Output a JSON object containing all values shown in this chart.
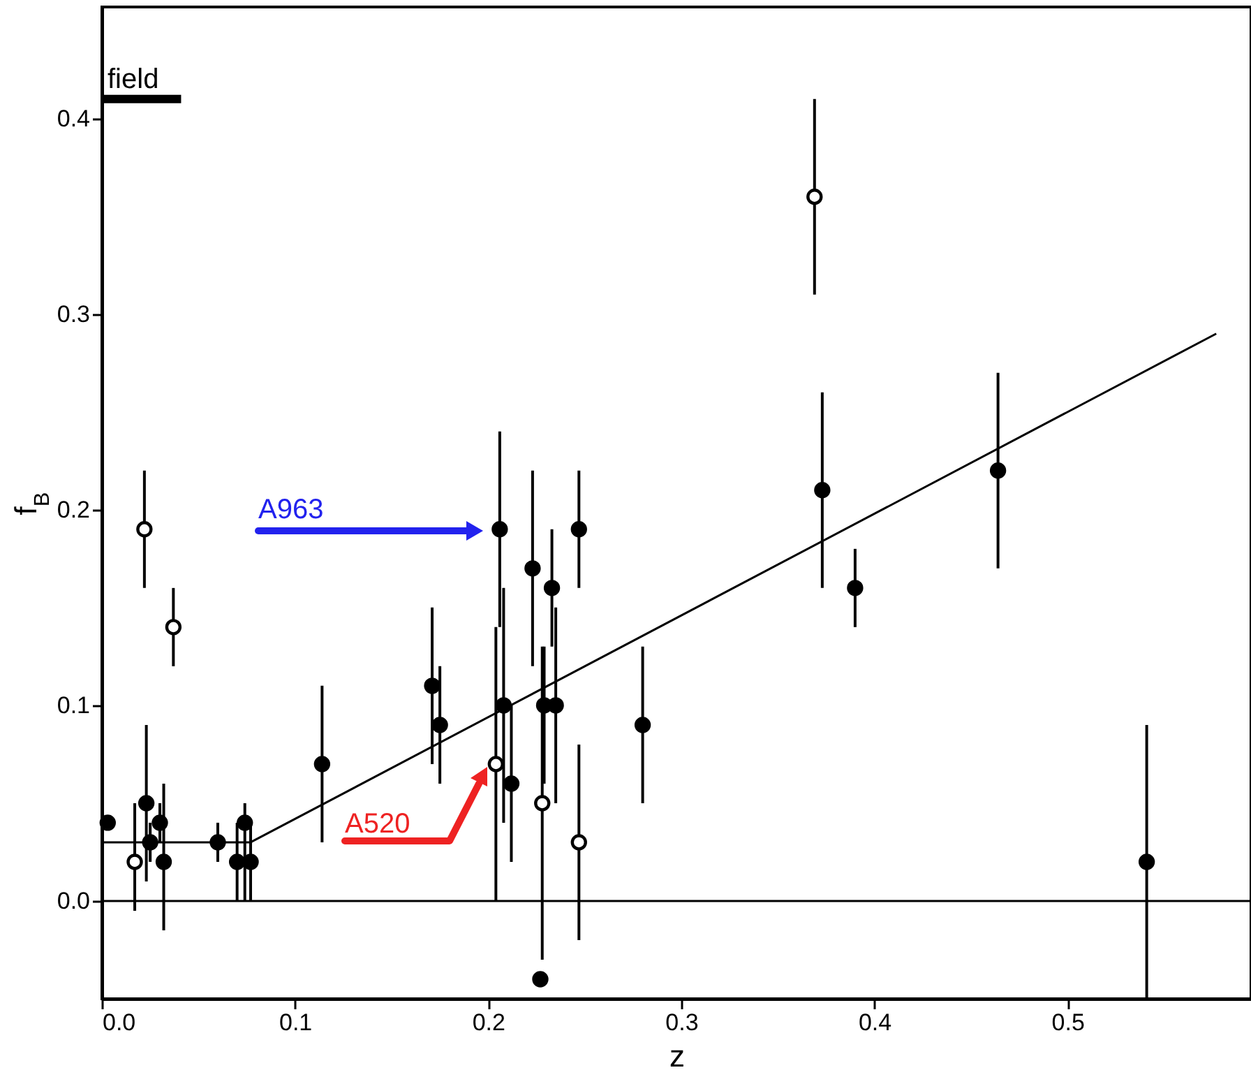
{
  "chart_data": {
    "type": "scatter",
    "xlabel": "z",
    "ylabel": "f$_{B}$",
    "xlim": [
      0,
      0.595
    ],
    "ylim": [
      -0.05,
      0.457
    ],
    "xticks": [
      {
        "value": 0,
        "label": "0.0"
      },
      {
        "value": 0.1,
        "label": "0.1"
      },
      {
        "value": 0.2,
        "label": "0.2"
      },
      {
        "value": 0.3,
        "label": "0.3"
      },
      {
        "value": 0.4,
        "label": "0.4"
      },
      {
        "value": 0.5,
        "label": "0.5"
      }
    ],
    "yticks": [
      {
        "value": 0,
        "label": "0.0"
      },
      {
        "value": 0.1,
        "label": "0.1"
      },
      {
        "value": 0.2,
        "label": "0.2"
      },
      {
        "value": 0.3,
        "label": "0.3"
      },
      {
        "value": 0.4,
        "label": "0.4"
      }
    ],
    "grid": false,
    "series": [
      {
        "marker": "circle",
        "color": "#000000",
        "x": [
          0.003,
          0.023,
          0.025,
          0.03,
          0.032,
          0.06,
          0.07,
          0.074,
          0.077,
          0.114,
          0.171,
          0.175,
          0.206,
          0.208,
          0.212,
          0.223,
          0.227,
          0.229,
          0.233,
          0.235,
          0.247,
          0.28,
          0.373,
          0.39,
          0.464,
          0.541
        ],
        "values": [
          0.04,
          0.05,
          0.03,
          0.04,
          0.02,
          0.03,
          0.02,
          0.04,
          0.02,
          0.07,
          0.11,
          0.09,
          0.19,
          0.1,
          0.06,
          0.17,
          -0.04,
          0.1,
          0.16,
          0.1,
          0.19,
          0.09,
          0.21,
          0.16,
          0.22,
          0.02
        ],
        "errors": [
          null,
          [
            0.01,
            0.09
          ],
          [
            0.02,
            0.04
          ],
          [
            0.03,
            0.05
          ],
          [
            -0.015,
            0.06
          ],
          [
            0.02,
            0.04
          ],
          [
            0,
            0.04
          ],
          [
            0,
            0.05
          ],
          [
            0,
            0.04
          ],
          [
            0.03,
            0.11
          ],
          [
            0.07,
            0.15
          ],
          [
            0.06,
            0.12
          ],
          [
            0.14,
            0.24
          ],
          [
            0.04,
            0.16
          ],
          [
            0.02,
            0.1
          ],
          [
            0.12,
            0.22
          ],
          null,
          [
            0.06,
            0.13
          ],
          [
            0.13,
            0.19
          ],
          [
            0.05,
            0.15
          ],
          [
            0.16,
            0.22
          ],
          [
            0.05,
            0.13
          ],
          [
            0.16,
            0.26
          ],
          [
            0.14,
            0.18
          ],
          [
            0.17,
            0.27
          ],
          [
            -0.05,
            0.09
          ]
        ]
      },
      {
        "marker": "circle",
        "color": "#ffffff",
        "x": [
          0.017,
          0.022,
          0.037,
          0.204,
          0.228,
          0.247,
          0.369
        ],
        "values": [
          0.02,
          0.19,
          0.14,
          0.07,
          0.05,
          0.03,
          0.36
        ],
        "errors": [
          [
            -0.005,
            0.05
          ],
          [
            0.16,
            0.22
          ],
          [
            0.12,
            0.16
          ],
          [
            0,
            0.14
          ],
          [
            -0.03,
            0.13
          ],
          [
            -0.02,
            0.08
          ],
          [
            0.31,
            0.41
          ]
        ]
      },
      {
        "type": "line",
        "color": "#000000",
        "x": [
          0,
          0.077,
          0.577
        ],
        "values": [
          0.03,
          0.03,
          0.29
        ]
      },
      {
        "type": "line",
        "name": "field",
        "color": "#000000",
        "x": [
          0,
          0.041
        ],
        "values": [
          0.41,
          0.41
        ]
      }
    ],
    "ref_lines": [
      {
        "axis": "y",
        "value": 0,
        "color": "#000000"
      }
    ],
    "annotations": [
      "A963",
      "A520"
    ]
  }
}
